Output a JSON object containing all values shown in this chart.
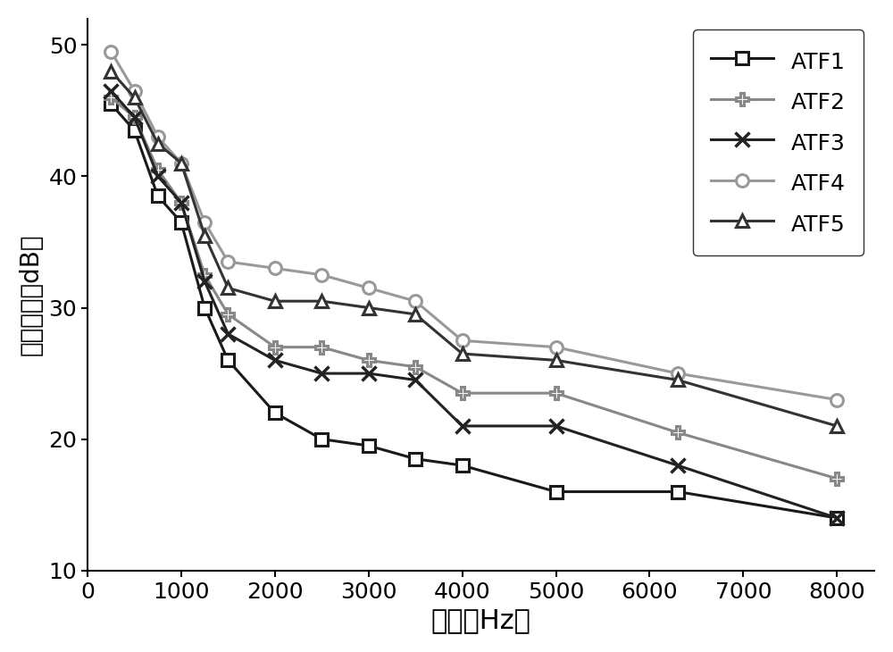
{
  "x": [
    250,
    500,
    750,
    1000,
    1250,
    1500,
    2000,
    2500,
    3000,
    3500,
    4000,
    5000,
    6300,
    8000
  ],
  "ATF1_x": [
    250,
    500,
    750,
    1000,
    1250,
    1500,
    2000,
    2500,
    3000,
    3500,
    4000,
    5000,
    6300,
    8000
  ],
  "ATF1_y": [
    45.5,
    43.5,
    38.5,
    36.5,
    30.0,
    26.0,
    22.0,
    20.0,
    19.5,
    18.5,
    18.0,
    16.0,
    16.0,
    14.0
  ],
  "ATF2_x": [
    250,
    500,
    750,
    1000,
    1250,
    1500,
    2000,
    2500,
    3000,
    3500,
    4000,
    5000,
    6300,
    8000
  ],
  "ATF2_y": [
    46.0,
    44.5,
    40.5,
    38.0,
    32.5,
    29.5,
    27.0,
    27.0,
    26.0,
    25.5,
    23.5,
    23.5,
    20.5,
    17.0
  ],
  "ATF3_x": [
    250,
    500,
    750,
    1000,
    1250,
    1500,
    2000,
    2500,
    3000,
    3500,
    4000,
    5000,
    6300,
    8000
  ],
  "ATF3_y": [
    46.5,
    44.5,
    40.0,
    38.0,
    32.0,
    28.0,
    26.0,
    25.0,
    25.0,
    24.5,
    21.0,
    21.0,
    18.0,
    14.0
  ],
  "ATF4_x": [
    250,
    500,
    750,
    1000,
    1250,
    1500,
    2000,
    2500,
    3000,
    3500,
    4000,
    5000,
    6300,
    8000
  ],
  "ATF4_y": [
    49.5,
    46.5,
    43.0,
    41.0,
    36.5,
    33.5,
    33.0,
    32.5,
    31.5,
    30.5,
    27.5,
    27.0,
    25.0,
    23.0
  ],
  "ATF5_x": [
    250,
    500,
    750,
    1000,
    1250,
    1500,
    2000,
    2500,
    3000,
    3500,
    4000,
    5000,
    6300,
    8000
  ],
  "ATF5_y": [
    48.0,
    46.0,
    42.5,
    41.0,
    35.5,
    31.5,
    30.5,
    30.5,
    30.0,
    29.5,
    26.5,
    26.0,
    24.5,
    21.0
  ],
  "colors": {
    "ATF1": "#1a1a1a",
    "ATF2": "#888888",
    "ATF3": "#222222",
    "ATF4": "#999999",
    "ATF5": "#333333"
  },
  "xlabel": "频率（Hz）",
  "ylabel": "传递函数（dB）",
  "xlim": [
    0,
    8400
  ],
  "ylim": [
    10,
    52
  ],
  "yticks": [
    10,
    20,
    30,
    40,
    50
  ],
  "xticks": [
    0,
    1000,
    2000,
    3000,
    4000,
    5000,
    6000,
    7000,
    8000
  ],
  "xlabel_fontsize": 22,
  "ylabel_fontsize": 20,
  "tick_fontsize": 18,
  "legend_fontsize": 18,
  "markersize": 10,
  "linewidth": 2.2,
  "background_color": "#ffffff"
}
